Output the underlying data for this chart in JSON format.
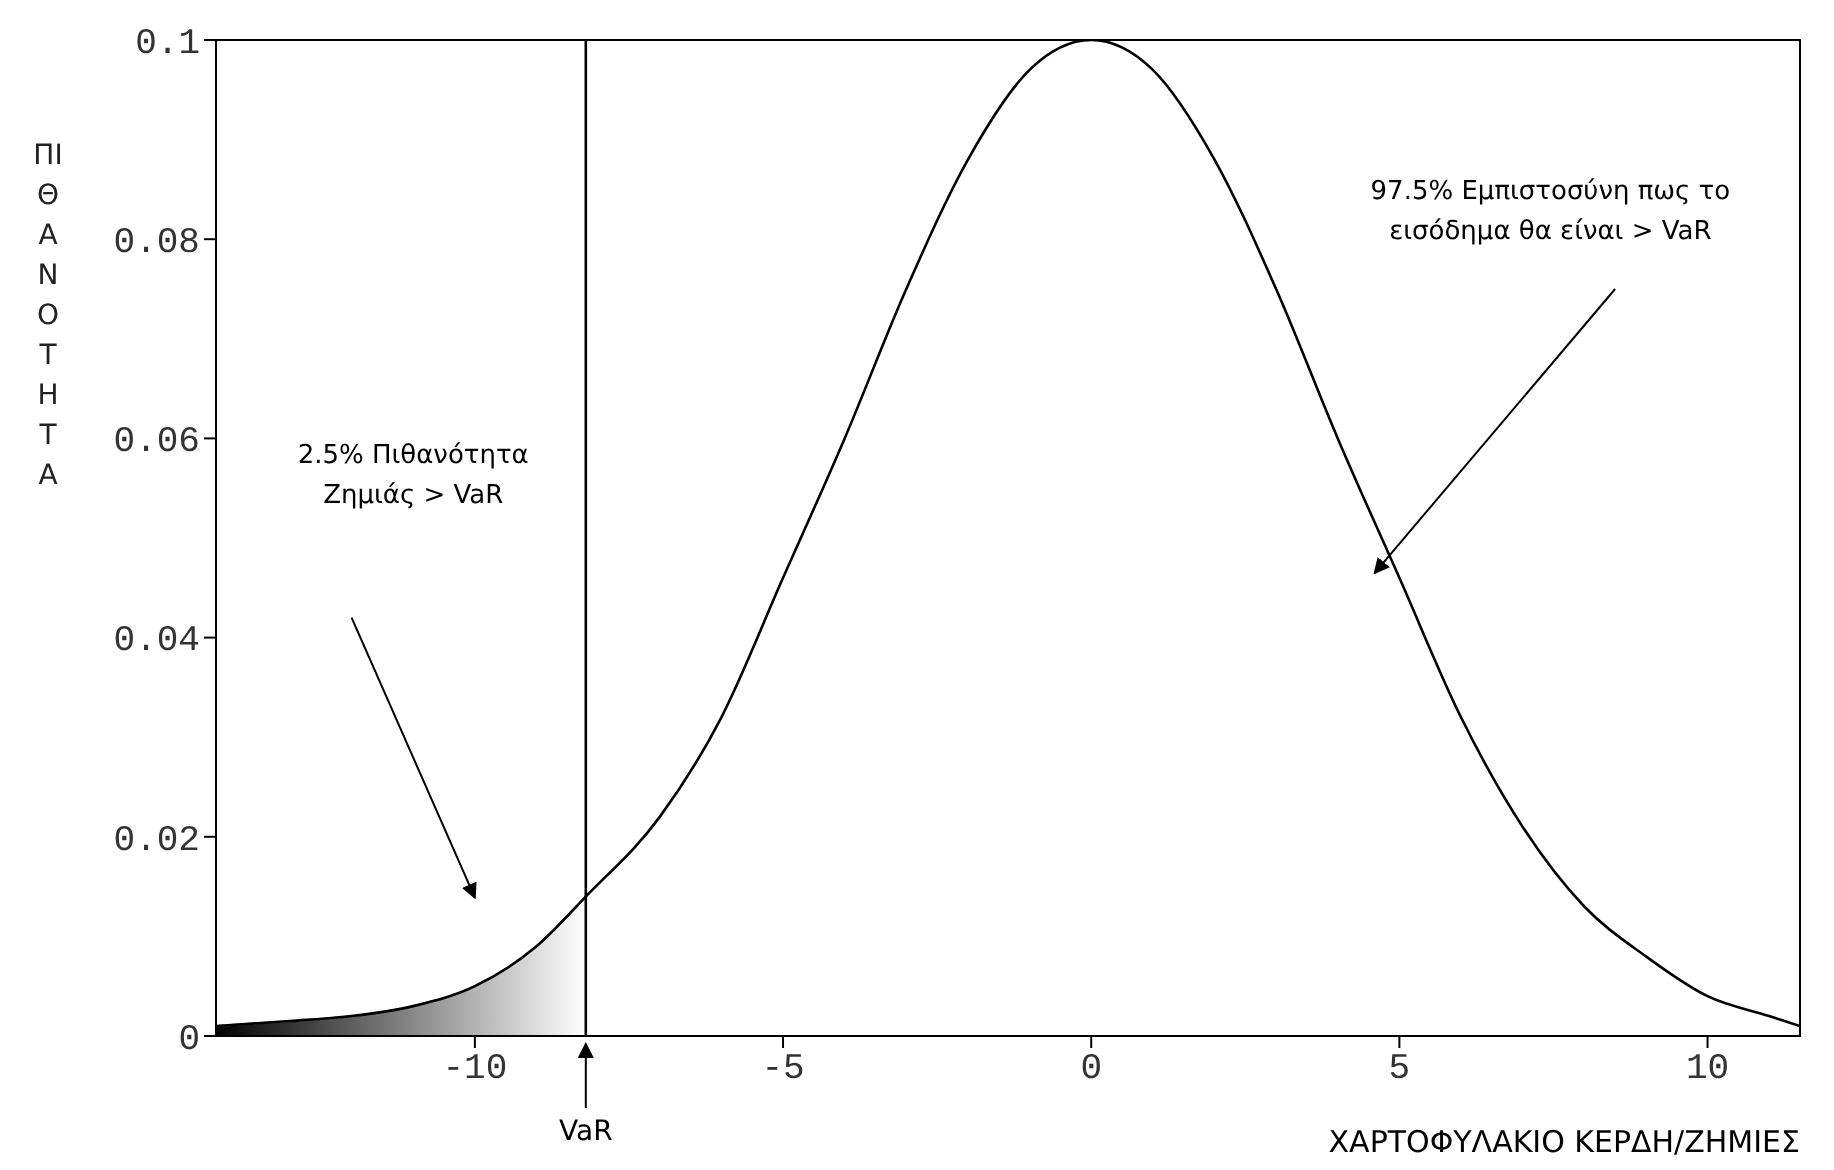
{
  "chart_data": {
    "type": "line",
    "xlabel": "ΧΑΡΤΟΦΥΛΑΚΙΟ ΚΕΡΔΗ/ΖΗΜΙΕΣ",
    "ylabel": "ΠΙΘΑΝΟΤΗΤΑ",
    "xlim": [
      -14.2,
      11.5
    ],
    "xticks": [
      -10,
      -5,
      0,
      5,
      10
    ],
    "ylim": [
      0,
      0.1
    ],
    "yticks": [
      0,
      0.02,
      0.04,
      0.06,
      0.08,
      0.1
    ],
    "series": [
      {
        "type": "area",
        "color": "#808080",
        "x": [
          -14.2,
          -13,
          -12,
          -11,
          -10,
          -9,
          -8.2
        ],
        "values": [
          0.001,
          0.0015,
          0.002,
          0.003,
          0.005,
          0.009,
          0.014
        ]
      },
      {
        "color": "#000000",
        "x": [
          -14.2,
          -13,
          -12,
          -11,
          -10,
          -9,
          -8.2,
          -7,
          -6,
          -5,
          -4,
          -3,
          -2,
          -1,
          0,
          1,
          2,
          3,
          4,
          5,
          6,
          7,
          8,
          9,
          10,
          11,
          11.5
        ],
        "values": [
          0.001,
          0.0015,
          0.002,
          0.003,
          0.005,
          0.009,
          0.014,
          0.022,
          0.032,
          0.046,
          0.06,
          0.075,
          0.088,
          0.097,
          0.1,
          0.097,
          0.088,
          0.075,
          0.06,
          0.046,
          0.032,
          0.021,
          0.013,
          0.008,
          0.004,
          0.002,
          0.001
        ]
      }
    ],
    "ref_lines": [
      {
        "axis": "x",
        "value": -8.2,
        "label": "VaR",
        "color": "#000000"
      }
    ],
    "annotations": [
      "2.5% Πιθανότητα\nΖημιάς > VaR",
      "97.5% Εμπιστοσύνη πως το\nεισόδημα θα είναι > VaR"
    ]
  }
}
